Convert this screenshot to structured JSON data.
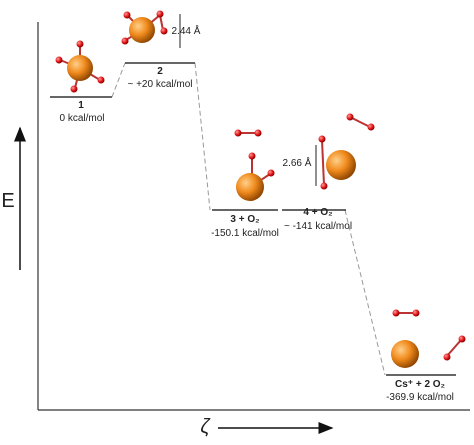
{
  "axis": {
    "y_label": "E",
    "x_label": "ζ"
  },
  "levels": [
    {
      "label": "1",
      "energy": "0 kcal/mol"
    },
    {
      "label": "2",
      "energy": "~ +20 kcal/mol",
      "distance": "2.44 Å"
    },
    {
      "label": "3 + O₂",
      "energy": "-150.1 kcal/mol"
    },
    {
      "label": "4 + O₂",
      "energy": "~ -141 kcal/mol",
      "distance": "2.66 Å"
    },
    {
      "label": "Cs⁺ + 2 O₂",
      "energy": "-369.9 kcal/mol"
    }
  ]
}
